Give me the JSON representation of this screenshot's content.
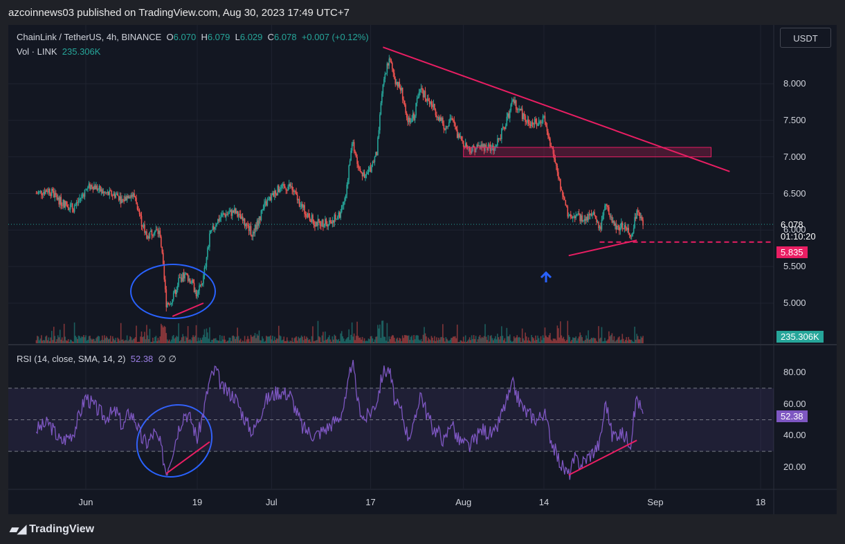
{
  "header": {
    "published": "azcoinnews03 published on TradingView.com, Aug 30, 2023 17:49 UTC+7"
  },
  "footer": {
    "brand": "TradingView"
  },
  "currency_button": "USDT",
  "legend": {
    "symbol": "ChainLink / TetherUS, 4h, BINANCE",
    "o_label": "O",
    "o_value": "6.070",
    "h_label": "H",
    "h_value": "6.079",
    "l_label": "L",
    "l_value": "6.029",
    "c_label": "C",
    "c_value": "6.078",
    "change": "+0.007 (+0.12%)",
    "vol_label": "Vol · LINK",
    "vol_value": "235.306K",
    "rsi_label": "RSI (14, close, SMA, 14, 2)",
    "rsi_value": "52.38",
    "rsi_extra": "∅  ∅"
  },
  "tags": {
    "price": "6.078",
    "countdown": "01:10:20",
    "support": "5.835",
    "volume": "235.306K",
    "rsi": "52.38"
  },
  "colors": {
    "up": "#26a69a",
    "down": "#ef5350",
    "trend": "#e91e63",
    "rsi": "#7e57c2",
    "circle": "#2962ff",
    "bg": "#131722"
  },
  "chart_data": [
    {
      "type": "candlestick",
      "title": "ChainLink / TetherUS, 4h, BINANCE",
      "xlabel": "",
      "ylabel": "",
      "x_ticks": [
        "Jun",
        "19",
        "Jul",
        "17",
        "Aug",
        "14",
        "Sep",
        "18"
      ],
      "y_ticks": [
        "5.000",
        "5.500",
        "6.000",
        "6.500",
        "7.000",
        "7.500",
        "8.000"
      ],
      "ylim": [
        4.6,
        8.8
      ],
      "close_path": [
        {
          "x": "2023-05-24",
          "y": 6.5
        },
        {
          "x": "2023-05-26",
          "y": 6.55
        },
        {
          "x": "2023-05-28",
          "y": 6.38
        },
        {
          "x": "2023-05-30",
          "y": 6.3
        },
        {
          "x": "2023-06-01",
          "y": 6.55
        },
        {
          "x": "2023-06-02",
          "y": 6.62
        },
        {
          "x": "2023-06-04",
          "y": 6.5
        },
        {
          "x": "2023-06-06",
          "y": 6.48
        },
        {
          "x": "2023-06-07",
          "y": 6.4
        },
        {
          "x": "2023-06-08",
          "y": 6.5
        },
        {
          "x": "2023-06-09",
          "y": 6.45
        },
        {
          "x": "2023-06-10",
          "y": 6.1
        },
        {
          "x": "2023-06-11",
          "y": 5.9
        },
        {
          "x": "2023-06-12",
          "y": 6.0
        },
        {
          "x": "2023-06-13",
          "y": 5.95
        },
        {
          "x": "2023-06-14",
          "y": 5.0
        },
        {
          "x": "2023-06-15",
          "y": 5.05
        },
        {
          "x": "2023-06-16",
          "y": 5.3
        },
        {
          "x": "2023-06-17",
          "y": 5.4
        },
        {
          "x": "2023-06-18",
          "y": 5.3
        },
        {
          "x": "2023-06-19",
          "y": 5.1
        },
        {
          "x": "2023-06-20",
          "y": 5.35
        },
        {
          "x": "2023-06-21",
          "y": 5.9
        },
        {
          "x": "2023-06-22",
          "y": 6.1
        },
        {
          "x": "2023-06-23",
          "y": 6.2
        },
        {
          "x": "2023-06-25",
          "y": 6.25
        },
        {
          "x": "2023-06-27",
          "y": 6.05
        },
        {
          "x": "2023-06-28",
          "y": 5.95
        },
        {
          "x": "2023-06-30",
          "y": 6.35
        },
        {
          "x": "2023-07-02",
          "y": 6.55
        },
        {
          "x": "2023-07-04",
          "y": 6.6
        },
        {
          "x": "2023-07-06",
          "y": 6.3
        },
        {
          "x": "2023-07-08",
          "y": 6.1
        },
        {
          "x": "2023-07-10",
          "y": 6.1
        },
        {
          "x": "2023-07-12",
          "y": 6.2
        },
        {
          "x": "2023-07-13",
          "y": 6.5
        },
        {
          "x": "2023-07-14",
          "y": 7.2
        },
        {
          "x": "2023-07-15",
          "y": 6.9
        },
        {
          "x": "2023-07-16",
          "y": 6.7
        },
        {
          "x": "2023-07-17",
          "y": 6.85
        },
        {
          "x": "2023-07-18",
          "y": 7.05
        },
        {
          "x": "2023-07-19",
          "y": 8.0
        },
        {
          "x": "2023-07-20",
          "y": 8.35
        },
        {
          "x": "2023-07-21",
          "y": 8.05
        },
        {
          "x": "2023-07-22",
          "y": 7.9
        },
        {
          "x": "2023-07-23",
          "y": 7.5
        },
        {
          "x": "2023-07-24",
          "y": 7.55
        },
        {
          "x": "2023-07-25",
          "y": 7.95
        },
        {
          "x": "2023-07-26",
          "y": 7.8
        },
        {
          "x": "2023-07-27",
          "y": 7.7
        },
        {
          "x": "2023-07-28",
          "y": 7.55
        },
        {
          "x": "2023-07-29",
          "y": 7.4
        },
        {
          "x": "2023-07-30",
          "y": 7.55
        },
        {
          "x": "2023-07-31",
          "y": 7.3
        },
        {
          "x": "2023-08-01",
          "y": 7.2
        },
        {
          "x": "2023-08-02",
          "y": 7.1
        },
        {
          "x": "2023-08-04",
          "y": 7.15
        },
        {
          "x": "2023-08-06",
          "y": 7.1
        },
        {
          "x": "2023-08-07",
          "y": 7.3
        },
        {
          "x": "2023-08-08",
          "y": 7.5
        },
        {
          "x": "2023-08-09",
          "y": 7.75
        },
        {
          "x": "2023-08-10",
          "y": 7.65
        },
        {
          "x": "2023-08-11",
          "y": 7.5
        },
        {
          "x": "2023-08-13",
          "y": 7.45
        },
        {
          "x": "2023-08-14",
          "y": 7.55
        },
        {
          "x": "2023-08-15",
          "y": 7.2
        },
        {
          "x": "2023-08-16",
          "y": 6.85
        },
        {
          "x": "2023-08-17",
          "y": 6.5
        },
        {
          "x": "2023-08-18",
          "y": 6.15
        },
        {
          "x": "2023-08-19",
          "y": 6.2
        },
        {
          "x": "2023-08-20",
          "y": 6.15
        },
        {
          "x": "2023-08-22",
          "y": 6.2
        },
        {
          "x": "2023-08-23",
          "y": 6.0
        },
        {
          "x": "2023-08-24",
          "y": 6.35
        },
        {
          "x": "2023-08-25",
          "y": 6.1
        },
        {
          "x": "2023-08-26",
          "y": 6.05
        },
        {
          "x": "2023-08-27",
          "y": 6.05
        },
        {
          "x": "2023-08-28",
          "y": 5.9
        },
        {
          "x": "2023-08-29",
          "y": 6.25
        },
        {
          "x": "2023-08-30",
          "y": 6.078
        }
      ],
      "volume_last": "235.306K",
      "annotations": {
        "descending_trendline": [
          {
            "x": "2023-07-19",
            "y": 8.5
          },
          {
            "x": "2023-09-13",
            "y": 6.8
          }
        ],
        "resistance_box": {
          "x": [
            "2023-08-01",
            "2023-09-10"
          ],
          "y": [
            7.0,
            7.13
          ]
        },
        "support_line": {
          "y": 5.835,
          "x_from": "2023-08-23"
        },
        "rising_support_main": [
          {
            "x": "2023-08-18",
            "y": 5.65
          },
          {
            "x": "2023-08-29",
            "y": 5.86
          }
        ],
        "rising_support_june": [
          {
            "x": "2023-06-15",
            "y": 4.82
          },
          {
            "x": "2023-06-20",
            "y": 5.0
          }
        ],
        "last_price": 6.078
      }
    },
    {
      "type": "line",
      "title": "RSI (14, close, SMA, 14, 2)",
      "xlabel": "",
      "ylabel": "",
      "y_ticks": [
        "20.00",
        "40.00",
        "60.00",
        "80.00"
      ],
      "ylim": [
        10,
        92
      ],
      "bands": [
        30,
        50,
        70
      ],
      "series": [
        {
          "name": "RSI",
          "values": [
            {
              "x": "2023-05-24",
              "y": 44
            },
            {
              "x": "2023-05-26",
              "y": 48
            },
            {
              "x": "2023-05-28",
              "y": 36
            },
            {
              "x": "2023-05-30",
              "y": 42
            },
            {
              "x": "2023-06-01",
              "y": 65
            },
            {
              "x": "2023-06-02",
              "y": 60
            },
            {
              "x": "2023-06-04",
              "y": 52
            },
            {
              "x": "2023-06-06",
              "y": 55
            },
            {
              "x": "2023-06-07",
              "y": 45
            },
            {
              "x": "2023-06-08",
              "y": 55
            },
            {
              "x": "2023-06-09",
              "y": 50
            },
            {
              "x": "2023-06-10",
              "y": 38
            },
            {
              "x": "2023-06-11",
              "y": 35
            },
            {
              "x": "2023-06-12",
              "y": 42
            },
            {
              "x": "2023-06-13",
              "y": 35
            },
            {
              "x": "2023-06-14",
              "y": 17
            },
            {
              "x": "2023-06-15",
              "y": 30
            },
            {
              "x": "2023-06-16",
              "y": 45
            },
            {
              "x": "2023-06-17",
              "y": 55
            },
            {
              "x": "2023-06-18",
              "y": 50
            },
            {
              "x": "2023-06-19",
              "y": 38
            },
            {
              "x": "2023-06-20",
              "y": 55
            },
            {
              "x": "2023-06-21",
              "y": 75
            },
            {
              "x": "2023-06-22",
              "y": 82
            },
            {
              "x": "2023-06-23",
              "y": 70
            },
            {
              "x": "2023-06-25",
              "y": 65
            },
            {
              "x": "2023-06-27",
              "y": 48
            },
            {
              "x": "2023-06-28",
              "y": 42
            },
            {
              "x": "2023-06-30",
              "y": 62
            },
            {
              "x": "2023-07-02",
              "y": 68
            },
            {
              "x": "2023-07-04",
              "y": 66
            },
            {
              "x": "2023-07-06",
              "y": 45
            },
            {
              "x": "2023-07-08",
              "y": 40
            },
            {
              "x": "2023-07-10",
              "y": 45
            },
            {
              "x": "2023-07-12",
              "y": 52
            },
            {
              "x": "2023-07-13",
              "y": 62
            },
            {
              "x": "2023-07-14",
              "y": 88
            },
            {
              "x": "2023-07-15",
              "y": 60
            },
            {
              "x": "2023-07-16",
              "y": 50
            },
            {
              "x": "2023-07-17",
              "y": 55
            },
            {
              "x": "2023-07-18",
              "y": 62
            },
            {
              "x": "2023-07-19",
              "y": 80
            },
            {
              "x": "2023-07-20",
              "y": 82
            },
            {
              "x": "2023-07-21",
              "y": 60
            },
            {
              "x": "2023-07-22",
              "y": 55
            },
            {
              "x": "2023-07-23",
              "y": 40
            },
            {
              "x": "2023-07-24",
              "y": 45
            },
            {
              "x": "2023-07-25",
              "y": 68
            },
            {
              "x": "2023-07-26",
              "y": 55
            },
            {
              "x": "2023-07-27",
              "y": 45
            },
            {
              "x": "2023-07-28",
              "y": 42
            },
            {
              "x": "2023-07-29",
              "y": 36
            },
            {
              "x": "2023-07-30",
              "y": 50
            },
            {
              "x": "2023-07-31",
              "y": 38
            },
            {
              "x": "2023-08-01",
              "y": 35
            },
            {
              "x": "2023-08-02",
              "y": 33
            },
            {
              "x": "2023-08-04",
              "y": 44
            },
            {
              "x": "2023-08-06",
              "y": 40
            },
            {
              "x": "2023-08-07",
              "y": 52
            },
            {
              "x": "2023-08-08",
              "y": 62
            },
            {
              "x": "2023-08-09",
              "y": 72
            },
            {
              "x": "2023-08-10",
              "y": 62
            },
            {
              "x": "2023-08-11",
              "y": 55
            },
            {
              "x": "2023-08-13",
              "y": 50
            },
            {
              "x": "2023-08-14",
              "y": 55
            },
            {
              "x": "2023-08-15",
              "y": 40
            },
            {
              "x": "2023-08-16",
              "y": 28
            },
            {
              "x": "2023-08-17",
              "y": 20
            },
            {
              "x": "2023-08-18",
              "y": 15
            },
            {
              "x": "2023-08-19",
              "y": 25
            },
            {
              "x": "2023-08-20",
              "y": 22
            },
            {
              "x": "2023-08-22",
              "y": 30
            },
            {
              "x": "2023-08-23",
              "y": 35
            },
            {
              "x": "2023-08-24",
              "y": 62
            },
            {
              "x": "2023-08-25",
              "y": 40
            },
            {
              "x": "2023-08-26",
              "y": 42
            },
            {
              "x": "2023-08-27",
              "y": 40
            },
            {
              "x": "2023-08-28",
              "y": 36
            },
            {
              "x": "2023-08-29",
              "y": 65
            },
            {
              "x": "2023-08-30",
              "y": 52.38
            }
          ]
        }
      ],
      "annotations": {
        "rising_line_main": [
          {
            "x": "2023-08-18",
            "y": 15
          },
          {
            "x": "2023-08-29",
            "y": 37
          }
        ],
        "rising_line_june": [
          {
            "x": "2023-06-14",
            "y": 16
          },
          {
            "x": "2023-06-21",
            "y": 36
          }
        ]
      }
    }
  ]
}
